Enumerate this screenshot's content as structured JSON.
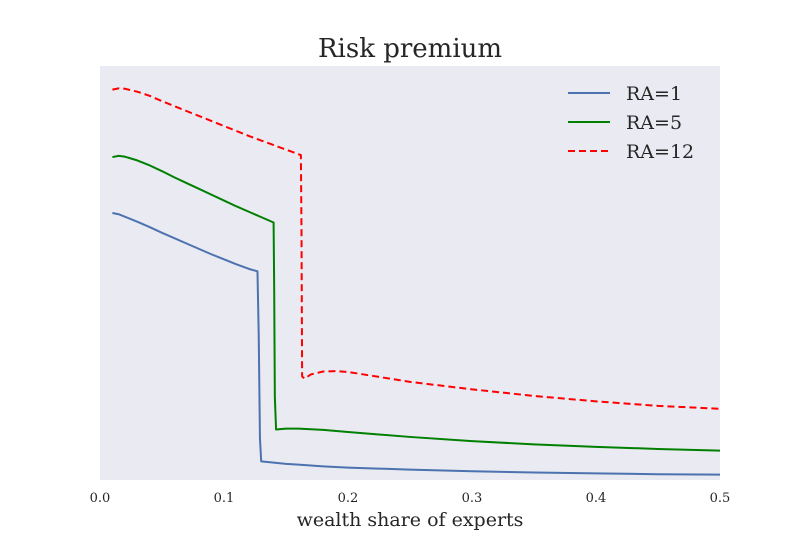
{
  "chart_data": {
    "type": "line",
    "title": "Risk premium",
    "xlabel": "wealth share of experts",
    "ylabel": "",
    "xlim": [
      0.0,
      0.5
    ],
    "ylim": [
      0.0,
      1.0
    ],
    "x_ticks": [
      "0.0",
      "0.1",
      "0.2",
      "0.3",
      "0.4",
      "0.5"
    ],
    "y_ticks_visible": false,
    "grid": false,
    "legend_position": "top-right",
    "background": "#EAEAF2",
    "series": [
      {
        "name": "RA=1",
        "color": "#4C72B0",
        "dash": "solid",
        "x": [
          0.01,
          0.015,
          0.02,
          0.03,
          0.04,
          0.05,
          0.06,
          0.07,
          0.08,
          0.09,
          0.1,
          0.11,
          0.12,
          0.127,
          0.128,
          0.129,
          0.13,
          0.14,
          0.15,
          0.16,
          0.18,
          0.2,
          0.25,
          0.3,
          0.35,
          0.4,
          0.45,
          0.5
        ],
        "y": [
          0.645,
          0.642,
          0.636,
          0.624,
          0.611,
          0.597,
          0.584,
          0.571,
          0.558,
          0.545,
          0.533,
          0.521,
          0.51,
          0.504,
          0.35,
          0.1,
          0.045,
          0.042,
          0.039,
          0.037,
          0.033,
          0.03,
          0.025,
          0.021,
          0.018,
          0.016,
          0.014,
          0.013
        ]
      },
      {
        "name": "RA=5",
        "color": "#008000",
        "dash": "solid",
        "x": [
          0.01,
          0.015,
          0.02,
          0.03,
          0.04,
          0.05,
          0.06,
          0.07,
          0.08,
          0.09,
          0.1,
          0.11,
          0.12,
          0.13,
          0.14,
          0.1405,
          0.141,
          0.142,
          0.15,
          0.16,
          0.18,
          0.2,
          0.25,
          0.3,
          0.35,
          0.4,
          0.45,
          0.5
        ],
        "y": [
          0.78,
          0.783,
          0.781,
          0.772,
          0.76,
          0.746,
          0.731,
          0.717,
          0.703,
          0.689,
          0.675,
          0.661,
          0.648,
          0.635,
          0.622,
          0.45,
          0.2,
          0.122,
          0.124,
          0.124,
          0.121,
          0.116,
          0.104,
          0.094,
          0.086,
          0.08,
          0.075,
          0.071
        ]
      },
      {
        "name": "RA=12",
        "color": "#FF0000",
        "dash": "dashed",
        "x": [
          0.01,
          0.015,
          0.02,
          0.03,
          0.04,
          0.05,
          0.06,
          0.07,
          0.08,
          0.09,
          0.1,
          0.11,
          0.12,
          0.13,
          0.14,
          0.15,
          0.16,
          0.162,
          0.1625,
          0.163,
          0.165,
          0.17,
          0.18,
          0.19,
          0.2,
          0.25,
          0.3,
          0.35,
          0.4,
          0.45,
          0.5
        ],
        "y": [
          0.943,
          0.946,
          0.945,
          0.938,
          0.928,
          0.915,
          0.903,
          0.891,
          0.879,
          0.867,
          0.855,
          0.843,
          0.831,
          0.82,
          0.809,
          0.798,
          0.787,
          0.785,
          0.6,
          0.25,
          0.245,
          0.255,
          0.262,
          0.263,
          0.261,
          0.237,
          0.219,
          0.203,
          0.19,
          0.179,
          0.172
        ]
      }
    ]
  }
}
